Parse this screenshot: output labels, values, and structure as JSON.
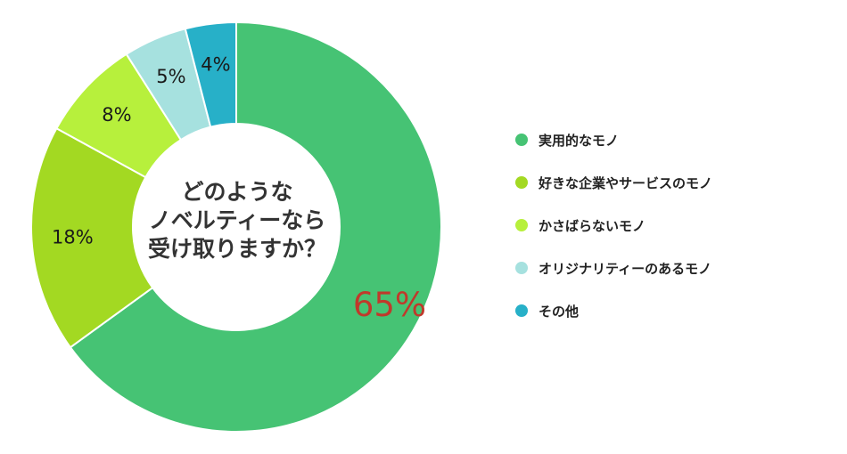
{
  "chart_data": {
    "type": "pie",
    "title": "どのようなノベルティーなら受け取りますか？",
    "title_lines": [
      "どのような",
      "ノベルティーなら",
      "受け取りますか？"
    ],
    "categories": [
      "実用的なモノ",
      "好きな企業やサービスのモノ",
      "かさばらないモノ",
      "オリジナリティーのあるモノ",
      "その他"
    ],
    "values": [
      65,
      18,
      8,
      5,
      4
    ],
    "value_labels": [
      "65%",
      "18%",
      "8%",
      "5%",
      "4%"
    ],
    "colors": [
      "#46c374",
      "#a3d922",
      "#b7f03c",
      "#a6e1df",
      "#27b0c8"
    ],
    "highlight_label_color": "#c0392b",
    "donut": true,
    "legend_position": "right"
  }
}
